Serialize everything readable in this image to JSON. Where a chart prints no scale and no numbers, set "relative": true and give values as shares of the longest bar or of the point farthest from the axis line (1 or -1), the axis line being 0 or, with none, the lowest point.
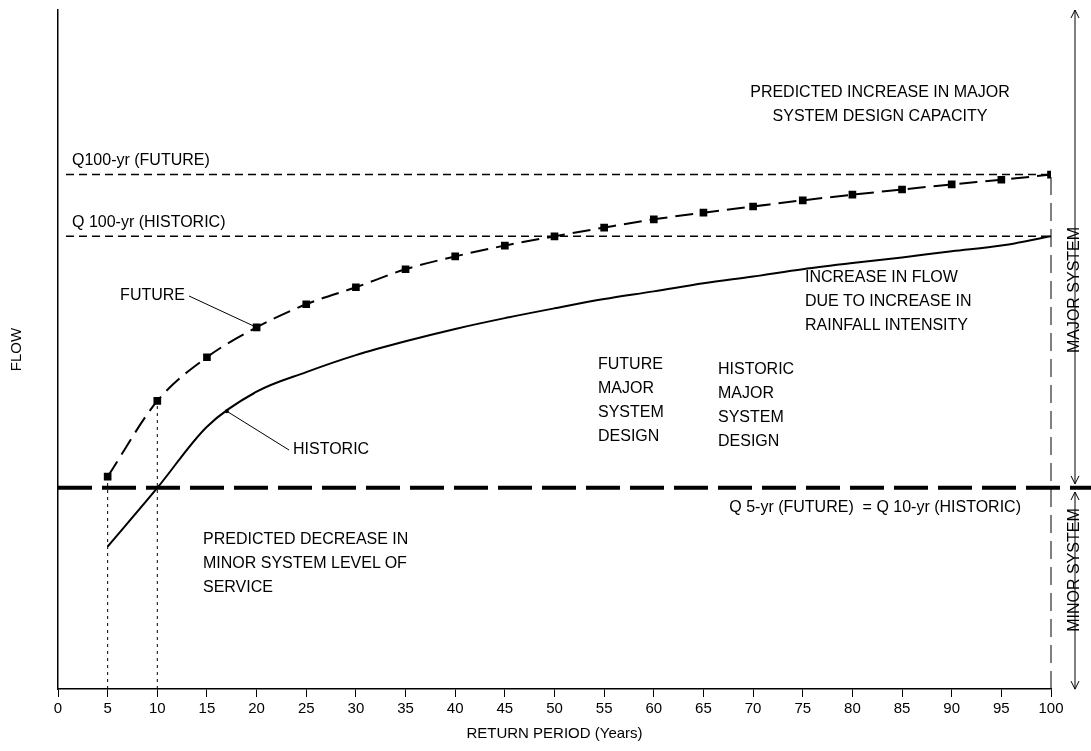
{
  "chart_data": {
    "type": "line",
    "xlabel": "RETURN PERIOD (Years)",
    "ylabel": "FLOW",
    "relative": true,
    "grid": false,
    "legend": false,
    "x": [
      5,
      10,
      15,
      20,
      25,
      30,
      35,
      40,
      45,
      50,
      55,
      60,
      65,
      70,
      75,
      80,
      85,
      90,
      95,
      100
    ],
    "xlim": [
      0,
      100
    ],
    "xticks": [
      0,
      5,
      10,
      15,
      20,
      25,
      30,
      35,
      40,
      45,
      50,
      55,
      60,
      65,
      70,
      75,
      80,
      85,
      90,
      95,
      100
    ],
    "series": [
      {
        "color": "#000000",
        "marker": "square",
        "line_style": "dashed",
        "values": [
          0.413,
          0.56,
          0.645,
          0.703,
          0.748,
          0.781,
          0.816,
          0.841,
          0.862,
          0.88,
          0.897,
          0.913,
          0.926,
          0.938,
          0.95,
          0.961,
          0.971,
          0.981,
          0.99,
          1.0
        ]
      },
      {
        "color": "#000000",
        "marker": "none",
        "line_style": "solid",
        "values": [
          0.277,
          0.391,
          0.51,
          0.578,
          0.616,
          0.649,
          0.676,
          0.7,
          0.721,
          0.74,
          0.758,
          0.773,
          0.789,
          0.802,
          0.816,
          0.828,
          0.839,
          0.851,
          0.862,
          0.88
        ]
      }
    ],
    "ref_lines": [
      {
        "axis": "y",
        "value": 1.0,
        "label": "Q100-yr (FUTURE)",
        "color": "#000000",
        "line_style": "dashed"
      },
      {
        "axis": "y",
        "value": 0.88,
        "label": "Q 100-yr (HISTORIC)",
        "color": "#000000",
        "line_style": "dashed"
      },
      {
        "axis": "y",
        "value": 0.391,
        "label": "Q 5-yr (FUTURE)  = Q 10-yr (HISTORIC)",
        "color": "#000000",
        "line_style": "dashed"
      },
      {
        "axis": "x",
        "value": 5,
        "color": "#000000",
        "line_style": "dotted"
      },
      {
        "axis": "x",
        "value": 10,
        "color": "#000000",
        "line_style": "dotted"
      },
      {
        "axis": "x",
        "value": 100,
        "color": "#000000",
        "line_style": "dashed"
      }
    ],
    "annotations": [
      "PREDICTED INCREASE IN MAJOR SYSTEM DESIGN CAPACITY",
      "INCREASE IN FLOW DUE TO INCREASE IN RAINFALL INTENSITY",
      {
        "text": "FUTURE",
        "x": 20,
        "y": 0.703
      },
      {
        "text": "HISTORIC",
        "x": 17,
        "y": 0.54
      },
      "FUTURE MAJOR SYSTEM DESIGN",
      "HISTORIC MAJOR SYSTEM DESIGN",
      "PREDICTED DECREASE IN MINOR SYSTEM LEVEL OF SERVICE",
      "MAJOR SYSTEM",
      "MINOR SYSTEM"
    ]
  }
}
